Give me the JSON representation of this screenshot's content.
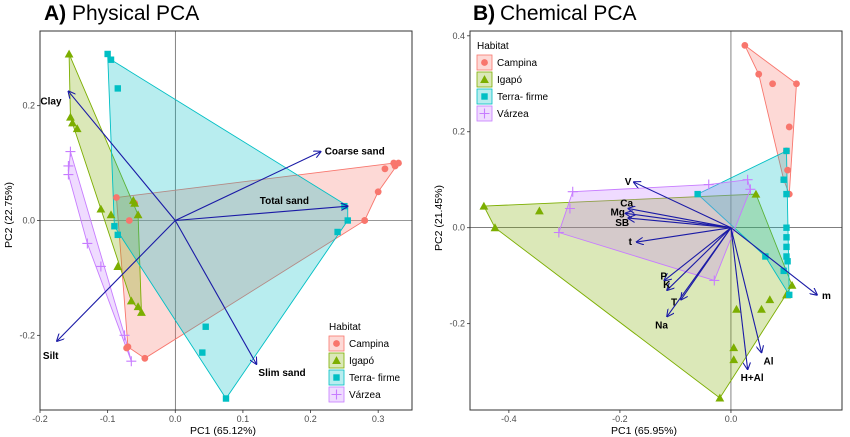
{
  "colors": {
    "Campina": "#f8766d",
    "Igapó": "#7cae00",
    "Terra- firme": "#00bfc4",
    "Várzea": "#c77cff",
    "arrow": "#1a1aa6",
    "grid": "#ebebeb",
    "zero_line": "#333333"
  },
  "chart_data": [
    {
      "type": "scatter",
      "subtype": "pca-biplot",
      "panel_letter": "A)",
      "title": "Physical PCA",
      "xlabel": "PC1 (65.12%)",
      "ylabel": "PC2 (22.75%)",
      "xlim": [
        -0.2,
        0.35
      ],
      "ylim": [
        -0.33,
        0.33
      ],
      "xticks": [
        -0.2,
        -0.1,
        0.0,
        0.1,
        0.2,
        0.3
      ],
      "yticks": [
        -0.2,
        0.0,
        0.2
      ],
      "xtick_labels": [
        "-0.2",
        "-0.1",
        "0.0",
        "0.1",
        "0.2",
        "0.3"
      ],
      "ytick_labels": [
        "-0.2",
        "0.0",
        "0.2"
      ],
      "grid": "off",
      "zero_lines": true,
      "legend": {
        "title": "Habitat",
        "position": "bottom-right",
        "entries": [
          "Campina",
          "Igapó",
          "Terra- firme",
          "Várzea"
        ]
      },
      "series": [
        {
          "name": "Campina",
          "marker": "circle",
          "points": [
            [
              -0.087,
              0.04
            ],
            [
              -0.06,
              0.03
            ],
            [
              -0.068,
              0.0
            ],
            [
              0.31,
              0.09
            ],
            [
              0.323,
              0.1
            ],
            [
              0.33,
              0.1
            ],
            [
              0.325,
              0.095
            ],
            [
              0.3,
              0.05
            ],
            [
              0.28,
              0.0
            ],
            [
              0.28,
              0.0
            ],
            [
              -0.07,
              -0.22
            ],
            [
              -0.072,
              -0.222
            ],
            [
              -0.045,
              -0.24
            ]
          ]
        },
        {
          "name": "Igapó",
          "marker": "triangle",
          "points": [
            [
              -0.157,
              0.29
            ],
            [
              -0.155,
              0.18
            ],
            [
              -0.152,
              0.17
            ],
            [
              -0.145,
              0.16
            ],
            [
              -0.11,
              0.02
            ],
            [
              -0.095,
              0.01
            ],
            [
              -0.062,
              0.035
            ],
            [
              -0.06,
              0.03
            ],
            [
              -0.055,
              0.01
            ],
            [
              -0.085,
              -0.08
            ],
            [
              -0.065,
              -0.14
            ],
            [
              -0.055,
              -0.15
            ],
            [
              -0.05,
              -0.16
            ]
          ]
        },
        {
          "name": "Terra- firme",
          "marker": "square",
          "points": [
            [
              -0.1,
              0.29
            ],
            [
              -0.095,
              0.28
            ],
            [
              -0.085,
              0.23
            ],
            [
              -0.09,
              -0.01
            ],
            [
              -0.085,
              -0.025
            ],
            [
              0.25,
              0.025
            ],
            [
              0.255,
              0.0
            ],
            [
              0.24,
              -0.02
            ],
            [
              0.045,
              -0.185
            ],
            [
              0.04,
              -0.23
            ],
            [
              0.075,
              -0.31
            ]
          ]
        },
        {
          "name": "Várzea",
          "marker": "plus",
          "points": [
            [
              -0.155,
              0.12
            ],
            [
              -0.158,
              0.095
            ],
            [
              -0.158,
              0.08
            ],
            [
              -0.13,
              -0.04
            ],
            [
              -0.11,
              -0.08
            ],
            [
              -0.075,
              -0.2
            ],
            [
              -0.065,
              -0.245
            ]
          ]
        }
      ],
      "hulls": [
        {
          "name": "Campina",
          "vertices": [
            [
              -0.087,
              0.04
            ],
            [
              0.323,
              0.1
            ],
            [
              0.33,
              0.1
            ],
            [
              0.3,
              0.05
            ],
            [
              0.28,
              0.0
            ],
            [
              -0.045,
              -0.24
            ],
            [
              -0.07,
              -0.22
            ]
          ]
        },
        {
          "name": "Igapó",
          "vertices": [
            [
              -0.157,
              0.29
            ],
            [
              -0.055,
              0.01
            ],
            [
              -0.05,
              -0.16
            ],
            [
              -0.065,
              -0.14
            ],
            [
              -0.155,
              0.18
            ]
          ]
        },
        {
          "name": "Terra- firme",
          "vertices": [
            [
              -0.1,
              0.29
            ],
            [
              -0.095,
              0.28
            ],
            [
              0.255,
              0.025
            ],
            [
              0.255,
              0.0
            ],
            [
              0.075,
              -0.31
            ],
            [
              -0.09,
              -0.01
            ]
          ]
        },
        {
          "name": "Várzea",
          "vertices": [
            [
              -0.155,
              0.12
            ],
            [
              -0.158,
              0.08
            ],
            [
              -0.13,
              -0.04
            ],
            [
              -0.065,
              -0.245
            ],
            [
              -0.075,
              -0.2
            ]
          ]
        }
      ],
      "vectors": [
        {
          "label": "Clay",
          "x": -0.158,
          "y": 0.225
        },
        {
          "label": "Coarse sand",
          "x": 0.215,
          "y": 0.12
        },
        {
          "label": "Total sand",
          "x": 0.255,
          "y": 0.025
        },
        {
          "label": "Silt",
          "x": -0.175,
          "y": -0.21
        },
        {
          "label": "Slim sand",
          "x": 0.12,
          "y": -0.25
        }
      ]
    },
    {
      "type": "scatter",
      "subtype": "pca-biplot",
      "panel_letter": "B)",
      "title": "Chemical PCA",
      "xlabel": "PC1 (65.95%)",
      "ylabel": "PC2 (21.45%)",
      "xlim": [
        -0.47,
        0.2
      ],
      "ylim": [
        -0.38,
        0.41
      ],
      "xticks": [
        -0.4,
        -0.2,
        0.0
      ],
      "yticks": [
        -0.2,
        0.0,
        0.2,
        0.4
      ],
      "xtick_labels": [
        "-0.4",
        "-0.2",
        "0.0"
      ],
      "ytick_labels": [
        "-0.2",
        "0.0",
        "0.2",
        "0.4"
      ],
      "grid": "off",
      "zero_lines": true,
      "legend": {
        "title": "Habitat",
        "position": "top-left",
        "entries": [
          "Campina",
          "Igapó",
          "Terra- firme",
          "Várzea"
        ]
      },
      "series": [
        {
          "name": "Campina",
          "marker": "circle",
          "points": [
            [
              0.025,
              0.38
            ],
            [
              0.05,
              0.32
            ],
            [
              0.075,
              0.3
            ],
            [
              0.118,
              0.3
            ],
            [
              0.105,
              0.21
            ],
            [
              0.1,
              0.16
            ],
            [
              0.102,
              0.12
            ],
            [
              0.095,
              0.1
            ],
            [
              0.105,
              0.07
            ]
          ]
        },
        {
          "name": "Igapó",
          "marker": "triangle",
          "points": [
            [
              -0.445,
              0.045
            ],
            [
              -0.425,
              0.0
            ],
            [
              -0.345,
              0.035
            ],
            [
              0.045,
              0.07
            ],
            [
              0.11,
              -0.12
            ],
            [
              0.1,
              -0.14
            ],
            [
              0.07,
              -0.15
            ],
            [
              0.055,
              -0.17
            ],
            [
              0.01,
              -0.17
            ],
            [
              0.005,
              -0.25
            ],
            [
              0.005,
              -0.275
            ],
            [
              -0.02,
              -0.355
            ]
          ]
        },
        {
          "name": "Terra- firme",
          "marker": "square",
          "points": [
            [
              -0.06,
              0.07
            ],
            [
              0.1,
              0.16
            ],
            [
              0.095,
              0.1
            ],
            [
              0.1,
              0.07
            ],
            [
              0.1,
              0.0
            ],
            [
              0.1,
              -0.02
            ],
            [
              0.1,
              -0.04
            ],
            [
              0.1,
              -0.06
            ],
            [
              0.102,
              -0.07
            ],
            [
              0.095,
              -0.09
            ],
            [
              0.105,
              -0.14
            ],
            [
              0.062,
              -0.06
            ]
          ]
        },
        {
          "name": "Várzea",
          "marker": "plus",
          "points": [
            [
              -0.285,
              0.075
            ],
            [
              -0.29,
              0.04
            ],
            [
              -0.31,
              -0.01
            ],
            [
              -0.04,
              0.09
            ],
            [
              0.03,
              0.1
            ],
            [
              0.035,
              0.08
            ],
            [
              -0.03,
              -0.11
            ]
          ]
        }
      ],
      "hulls": [
        {
          "name": "Campina",
          "vertices": [
            [
              0.025,
              0.38
            ],
            [
              0.118,
              0.3
            ],
            [
              0.105,
              0.07
            ],
            [
              0.095,
              0.1
            ],
            [
              0.05,
              0.32
            ]
          ]
        },
        {
          "name": "Igapó",
          "vertices": [
            [
              -0.445,
              0.045
            ],
            [
              0.045,
              0.07
            ],
            [
              0.11,
              -0.12
            ],
            [
              -0.02,
              -0.355
            ],
            [
              -0.425,
              0.0
            ]
          ]
        },
        {
          "name": "Terra- firme",
          "vertices": [
            [
              -0.06,
              0.07
            ],
            [
              0.1,
              0.16
            ],
            [
              0.105,
              -0.14
            ],
            [
              0.062,
              -0.06
            ]
          ]
        },
        {
          "name": "Várzea",
          "vertices": [
            [
              -0.285,
              0.075
            ],
            [
              -0.04,
              0.09
            ],
            [
              0.03,
              0.1
            ],
            [
              0.035,
              0.08
            ],
            [
              -0.03,
              -0.11
            ],
            [
              -0.31,
              -0.01
            ]
          ]
        }
      ],
      "vectors": [
        {
          "label": "V",
          "x": -0.175,
          "y": 0.095
        },
        {
          "label": "Ca",
          "x": -0.185,
          "y": 0.04
        },
        {
          "label": "Mg",
          "x": -0.19,
          "y": 0.03
        },
        {
          "label": "SB",
          "x": -0.185,
          "y": 0.02
        },
        {
          "label": "t",
          "x": -0.17,
          "y": -0.03
        },
        {
          "label": "P",
          "x": -0.12,
          "y": -0.11
        },
        {
          "label": "K",
          "x": -0.115,
          "y": -0.13
        },
        {
          "label": "T",
          "x": -0.09,
          "y": -0.15
        },
        {
          "label": "Na",
          "x": -0.115,
          "y": -0.185
        },
        {
          "label": "Al",
          "x": 0.055,
          "y": -0.26
        },
        {
          "label": "H+Al",
          "x": 0.03,
          "y": -0.295
        },
        {
          "label": "m",
          "x": 0.155,
          "y": -0.14
        }
      ]
    }
  ]
}
